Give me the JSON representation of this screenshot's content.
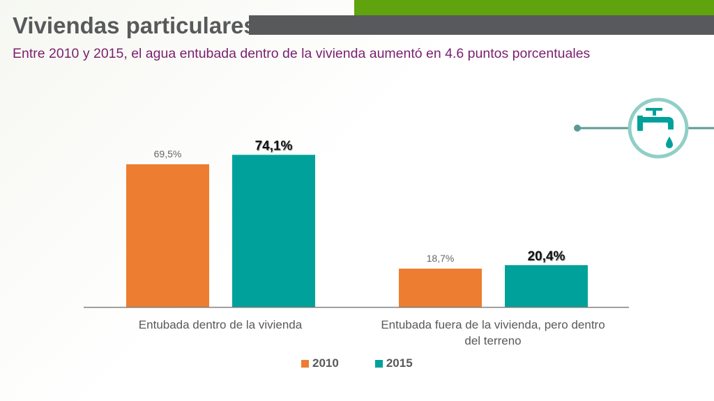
{
  "header": {
    "title": "Viviendas particulares",
    "subtitle": "Entre 2010 y 2015, el agua entubada dentro de la vivienda aumentó en 4.6 puntos porcentuales"
  },
  "icon": "water-faucet-icon",
  "colors": {
    "orange": "#ed7d31",
    "teal": "#00a19a",
    "purple": "#7a1f6e",
    "green": "#5fa30f",
    "gray": "#58595b"
  },
  "chart_data": {
    "type": "bar",
    "categories": [
      [
        "Entubada dentro de la vivienda"
      ],
      [
        "Entubada fuera de la vivienda, pero dentro",
        "del terreno"
      ]
    ],
    "series": [
      {
        "name": "2010",
        "values": [
          69.5,
          18.7
        ],
        "labels": [
          "69,5%",
          "18,7%"
        ],
        "color": "#ed7d31"
      },
      {
        "name": "2015",
        "values": [
          74.1,
          20.4
        ],
        "labels": [
          "74,1%",
          "20,4%"
        ],
        "color": "#00a19a"
      }
    ],
    "ylim": [
      0,
      100
    ],
    "legend": "bottom",
    "grid": false
  }
}
